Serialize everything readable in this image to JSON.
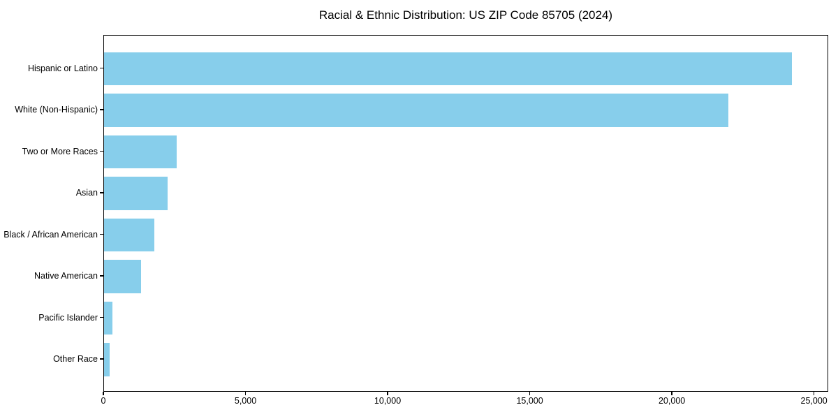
{
  "title": "Racial & Ethnic Distribution: US ZIP Code 85705 (2024)",
  "colors": {
    "bar": "#87CEEB",
    "axis": "#000000",
    "background": "#FFFFFF",
    "text": "#000000"
  },
  "chart_data": {
    "type": "bar",
    "orientation": "horizontal",
    "title": "Racial & Ethnic Distribution: US ZIP Code 85705 (2024)",
    "categories": [
      "Hispanic or Latino",
      "White (Non-Hispanic)",
      "Two or More Races",
      "Asian",
      "Black / African American",
      "Native American",
      "Pacific Islander",
      "Other Race"
    ],
    "values": [
      24250,
      22000,
      2550,
      2250,
      1780,
      1300,
      290,
      190
    ],
    "xlabel": "",
    "ylabel": "",
    "x_ticks": [
      0,
      5000,
      10000,
      15000,
      20000,
      25000
    ],
    "x_tick_labels": [
      "0",
      "5,000",
      "10,000",
      "15,000",
      "20,000",
      "25,000"
    ],
    "xlim": [
      0,
      25500
    ],
    "grid": false,
    "legend": null,
    "bar_color": "#87CEEB"
  }
}
